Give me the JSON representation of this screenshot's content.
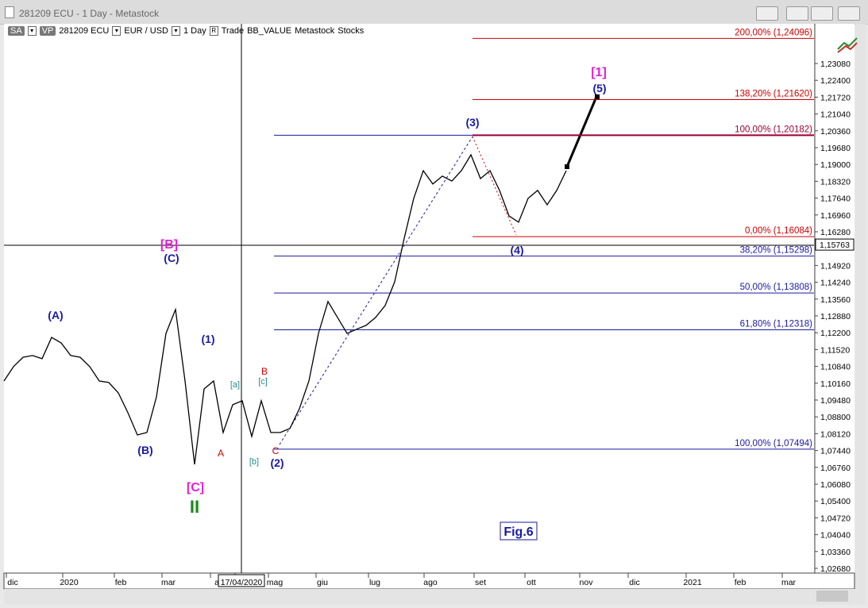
{
  "window": {
    "title": "281209 ECU - 1 Day - Metastock"
  },
  "toolbar": {
    "items": [
      "SA",
      "VP",
      "281209 ECU",
      "EUR / USD",
      "1 Day",
      "R",
      "Trade",
      "BB_VALUE",
      "Metastock",
      "Stocks"
    ]
  },
  "chart_data": {
    "type": "line",
    "values": [
      1.1025,
      1.1083,
      1.1121,
      1.1128,
      1.1115,
      1.1201,
      1.1179,
      1.1128,
      1.1121,
      1.1083,
      1.1025,
      1.1019,
      1.0977,
      1.0897,
      1.0807,
      1.0817,
      1.0961,
      1.1217,
      1.1314,
      1.1025,
      1.0688,
      1.0993,
      1.1025,
      1.0817,
      1.0929,
      1.0945,
      1.0801,
      1.0945,
      1.0817,
      1.0817,
      1.0833,
      1.0913,
      1.1025,
      1.1217,
      1.1346,
      1.1282,
      1.1217,
      1.1234,
      1.125,
      1.1282,
      1.133,
      1.1426,
      1.1602,
      1.1763,
      1.1875,
      1.1821,
      1.1853,
      1.1833,
      1.1875,
      1.1939,
      1.1843,
      1.1875,
      1.1795,
      1.1692,
      1.1667,
      1.1763,
      1.1795,
      1.1737,
      1.1795,
      1.1875
    ],
    "color": "#000000",
    "ylim": [
      1.02488,
      1.24684
    ],
    "yticks": [
      {
        "value": 1.2308,
        "label": "1,23080"
      },
      {
        "value": 1.224,
        "label": "1,22400"
      },
      {
        "value": 1.2172,
        "label": "1,21720"
      },
      {
        "value": 1.2104,
        "label": "1,21040"
      },
      {
        "value": 1.2036,
        "label": "1,20360"
      },
      {
        "value": 1.1968,
        "label": "1,19680"
      },
      {
        "value": 1.19,
        "label": "1,19000"
      },
      {
        "value": 1.1832,
        "label": "1,18320"
      },
      {
        "value": 1.1764,
        "label": "1,17640"
      },
      {
        "value": 1.1696,
        "label": "1,16960"
      },
      {
        "value": 1.1628,
        "label": "1,16280"
      },
      {
        "value": 1.1492,
        "label": "1,14920"
      },
      {
        "value": 1.1424,
        "label": "1,14240"
      },
      {
        "value": 1.1356,
        "label": "1,13560"
      },
      {
        "value": 1.1288,
        "label": "1,12880"
      },
      {
        "value": 1.122,
        "label": "1,12200"
      },
      {
        "value": 1.1152,
        "label": "1,11520"
      },
      {
        "value": 1.1084,
        "label": "1,10840"
      },
      {
        "value": 1.1016,
        "label": "1,10160"
      },
      {
        "value": 1.0948,
        "label": "1,09480"
      },
      {
        "value": 1.088,
        "label": "1,08800"
      },
      {
        "value": 1.0812,
        "label": "1,08120"
      },
      {
        "value": 1.0744,
        "label": "1,07440"
      },
      {
        "value": 1.0676,
        "label": "1,06760"
      },
      {
        "value": 1.0608,
        "label": "1,06080"
      },
      {
        "value": 1.054,
        "label": "1,05400"
      },
      {
        "value": 1.0472,
        "label": "1,04720"
      },
      {
        "value": 1.0404,
        "label": "1,04040"
      },
      {
        "value": 1.0336,
        "label": "1,03360"
      },
      {
        "value": 1.0268,
        "label": "1,02680"
      }
    ],
    "current_price": {
      "value": 1.15763,
      "label": "1,15763"
    },
    "x_labels": [
      "dic",
      "2020",
      "feb",
      "mar",
      "a",
      "17/04/2020",
      "mag",
      "giu",
      "lug",
      "ago",
      "set",
      "ott",
      "nov",
      "dic",
      "2021",
      "feb",
      "mar"
    ],
    "levels": [
      {
        "value": 1.24096,
        "label": "200,00% (1,24096)",
        "color": "#cc0000"
      },
      {
        "value": 1.2162,
        "label": "138,20% (1,21620)",
        "color": "#cc0000"
      },
      {
        "value": 1.20182,
        "label": "100,00% (1,20182)",
        "color": "#990033"
      },
      {
        "value": 1.16084,
        "label": "0,00% (1,16084)",
        "color": "#cc0000"
      },
      {
        "value": 1.15298,
        "label": "38,20% (1,15298)",
        "color": "#1a1aa0"
      },
      {
        "value": 1.13808,
        "label": "50,00% (1,13808)",
        "color": "#1a1aa0"
      },
      {
        "value": 1.12318,
        "label": "61,80% (1,12318)",
        "color": "#1a1aa0"
      },
      {
        "value": 1.07494,
        "label": "100,00% (1,07494)",
        "color": "#1a1aa0"
      }
    ],
    "annotations": [
      "(A)",
      "(B)",
      "[B]",
      "(C)",
      "(1)",
      "[a]",
      "A",
      "B",
      "[c]",
      "[b]",
      "C",
      "(2)",
      "[C]",
      "II",
      "(3)",
      "(4)",
      "(5)",
      "[1]",
      "Fig.6"
    ]
  }
}
